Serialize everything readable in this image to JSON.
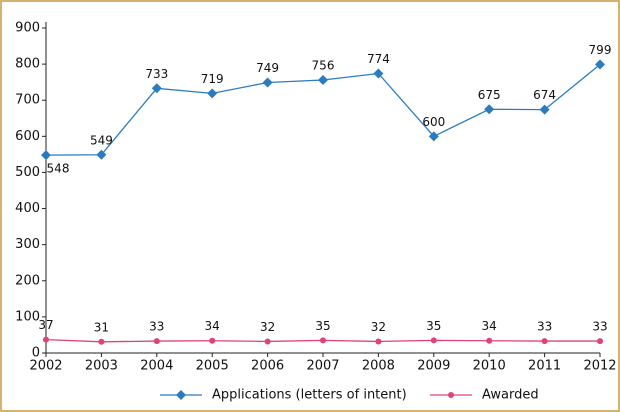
{
  "chart_data": {
    "type": "line",
    "categories": [
      "2002",
      "2003",
      "2004",
      "2005",
      "2006",
      "2007",
      "2008",
      "2009",
      "2010",
      "2011",
      "2012"
    ],
    "series": [
      {
        "name": "Applications (letters of intent)",
        "color": "#2b7bbf",
        "marker": "diamond",
        "values": [
          548,
          549,
          733,
          719,
          749,
          756,
          774,
          600,
          675,
          674,
          799
        ]
      },
      {
        "name": "Awarded",
        "color": "#e0407b",
        "marker": "circle",
        "values": [
          37,
          31,
          33,
          34,
          32,
          35,
          32,
          35,
          34,
          33,
          33
        ]
      }
    ],
    "ylim": [
      0,
      900
    ],
    "yticks": [
      0,
      100,
      200,
      300,
      400,
      500,
      600,
      700,
      800,
      900
    ],
    "grid": false,
    "legend": "bottom"
  }
}
